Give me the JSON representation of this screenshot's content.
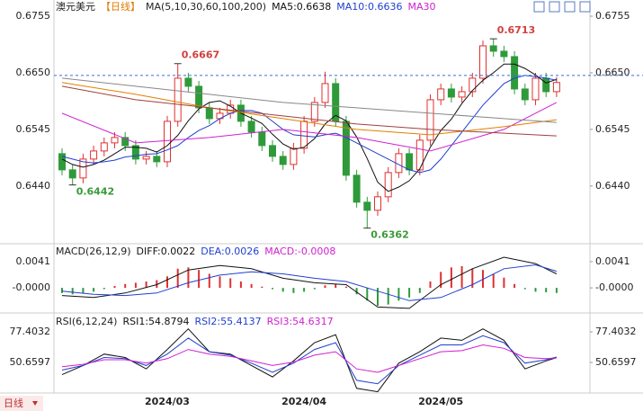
{
  "chart_data": [
    {
      "type": "candlestick",
      "header": [
        {
          "text": "澳元美元",
          "color": "#222"
        },
        {
          "text": "【日线】",
          "color": "#e07b00"
        },
        {
          "text": "MA(5,10,30,60,100,200)",
          "color": "#222"
        }
      ],
      "categories": [
        null,
        null,
        null,
        null,
        null,
        null,
        null,
        null,
        null,
        null,
        "2024/03",
        null,
        null,
        null,
        null,
        null,
        null,
        null,
        null,
        null,
        null,
        null,
        null,
        "2024/04",
        null,
        null,
        null,
        null,
        null,
        null,
        null,
        null,
        null,
        null,
        null,
        null,
        "2024/05",
        null,
        null,
        null,
        null,
        null,
        null,
        null,
        null,
        null,
        null,
        null
      ],
      "open": [
        0.65,
        0.647,
        0.6455,
        0.649,
        0.6505,
        0.652,
        0.653,
        0.6515,
        0.649,
        0.6495,
        0.6485,
        0.656,
        0.664,
        0.6625,
        0.6585,
        0.6565,
        0.6575,
        0.659,
        0.656,
        0.654,
        0.6515,
        0.6495,
        0.648,
        0.651,
        0.656,
        0.6595,
        0.663,
        0.656,
        0.646,
        0.641,
        0.6395,
        0.642,
        0.6465,
        0.65,
        0.647,
        0.6525,
        0.66,
        0.662,
        0.6605,
        0.6615,
        0.664,
        0.67,
        0.669,
        0.668,
        0.662,
        0.66,
        0.664,
        0.6615
      ],
      "high": [
        0.651,
        0.648,
        0.65,
        0.6515,
        0.653,
        0.654,
        0.654,
        0.6525,
        0.6505,
        0.6505,
        0.657,
        0.6667,
        0.665,
        0.6635,
        0.6595,
        0.6585,
        0.66,
        0.66,
        0.657,
        0.655,
        0.6525,
        0.6505,
        0.652,
        0.657,
        0.6605,
        0.6652,
        0.664,
        0.657,
        0.647,
        0.642,
        0.643,
        0.6475,
        0.651,
        0.651,
        0.6535,
        0.661,
        0.663,
        0.663,
        0.6625,
        0.665,
        0.671,
        0.6713,
        0.67,
        0.669,
        0.663,
        0.665,
        0.665,
        0.6642
      ],
      "low": [
        0.646,
        0.6442,
        0.6445,
        0.648,
        0.6495,
        0.651,
        0.6505,
        0.648,
        0.648,
        0.6475,
        0.6475,
        0.655,
        0.6615,
        0.6575,
        0.6555,
        0.6555,
        0.6565,
        0.655,
        0.653,
        0.6505,
        0.6485,
        0.647,
        0.647,
        0.65,
        0.655,
        0.6585,
        0.655,
        0.645,
        0.64,
        0.6362,
        0.6385,
        0.641,
        0.6455,
        0.646,
        0.646,
        0.6515,
        0.659,
        0.6595,
        0.6595,
        0.6605,
        0.663,
        0.668,
        0.667,
        0.661,
        0.659,
        0.659,
        0.6605,
        0.6605
      ],
      "close": [
        0.647,
        0.6455,
        0.649,
        0.6505,
        0.652,
        0.653,
        0.6515,
        0.649,
        0.6495,
        0.6485,
        0.656,
        0.664,
        0.6625,
        0.6585,
        0.6565,
        0.6575,
        0.659,
        0.656,
        0.654,
        0.6515,
        0.6495,
        0.648,
        0.651,
        0.656,
        0.6595,
        0.663,
        0.656,
        0.646,
        0.641,
        0.6395,
        0.642,
        0.6465,
        0.65,
        0.647,
        0.6525,
        0.66,
        0.662,
        0.6605,
        0.6615,
        0.664,
        0.67,
        0.669,
        0.668,
        0.662,
        0.66,
        0.664,
        0.6615,
        0.6632
      ],
      "up_color": "#e03030",
      "down_color": "#2f9a3a",
      "series": [
        {
          "name": "MA5:0.6638",
          "color": "#111111",
          "values": [
            0.649,
            0.648,
            0.6475,
            0.648,
            0.6488,
            0.65,
            0.6512,
            0.6512,
            0.651,
            0.6503,
            0.6515,
            0.6534,
            0.6561,
            0.6583,
            0.6595,
            0.6598,
            0.6588,
            0.6575,
            0.6566,
            0.6556,
            0.6536,
            0.6518,
            0.6508,
            0.6512,
            0.6528,
            0.6555,
            0.6571,
            0.6561,
            0.6531,
            0.6491,
            0.6447,
            0.643,
            0.6438,
            0.645,
            0.6472,
            0.6512,
            0.6543,
            0.6564,
            0.6593,
            0.6617,
            0.6636,
            0.665,
            0.6666,
            0.6666,
            0.6658,
            0.6646,
            0.6631,
            0.6638
          ]
        },
        {
          "name": "MA10:0.6636",
          "color": "#2040d0",
          "values": [
            0.6495,
            0.649,
            0.6485,
            0.6483,
            0.6485,
            0.6488,
            0.6494,
            0.6496,
            0.6499,
            0.65,
            0.6507,
            0.6515,
            0.653,
            0.6543,
            0.6552,
            0.6565,
            0.6575,
            0.658,
            0.658,
            0.6575,
            0.656,
            0.6545,
            0.6535,
            0.6533,
            0.6531,
            0.6535,
            0.6538,
            0.653,
            0.652,
            0.651,
            0.65,
            0.649,
            0.648,
            0.647,
            0.6465,
            0.647,
            0.649,
            0.6515,
            0.654,
            0.6565,
            0.659,
            0.661,
            0.663,
            0.664,
            0.6645,
            0.6643,
            0.664,
            0.6636
          ]
        },
        {
          "name": "MA30",
          "color": "#d020d0",
          "x": [
            0,
            7,
            14,
            21,
            28,
            35,
            42,
            47
          ],
          "values": [
            0.6575,
            0.652,
            0.653,
            0.6545,
            0.653,
            0.6505,
            0.6545,
            0.6595
          ]
        },
        {
          "color": "#e08000",
          "x": [
            0,
            7,
            14,
            21,
            28,
            35,
            42,
            47
          ],
          "values": [
            0.6632,
            0.661,
            0.6585,
            0.6565,
            0.6545,
            0.6535,
            0.655,
            0.6563
          ]
        },
        {
          "color": "#888888",
          "x": [
            0,
            7,
            14,
            21,
            28,
            35,
            42,
            47
          ],
          "values": [
            0.664,
            0.6625,
            0.661,
            0.6595,
            0.6585,
            0.6575,
            0.6565,
            0.6558
          ]
        },
        {
          "color": "#a04040",
          "x": [
            0,
            7,
            14,
            21,
            28,
            35,
            42,
            47
          ],
          "values": [
            0.6625,
            0.66,
            0.6585,
            0.657,
            0.6555,
            0.6545,
            0.6538,
            0.6533
          ]
        }
      ],
      "annotations": [
        {
          "x": 11,
          "value": 0.6667,
          "color": "#d04040"
        },
        {
          "x": 41,
          "value": 0.6713,
          "color": "#d04040"
        },
        {
          "x": 1,
          "value": 0.6442,
          "color": "#3a9a3a"
        },
        {
          "x": 29,
          "value": 0.6362,
          "color": "#3a9a3a"
        }
      ],
      "price_line": 0.6645,
      "ylim": [
        0.6338,
        0.6785
      ],
      "yticks": [
        0.6755,
        {
          "value": 0.665,
          "label": "0.6650"
        },
        0.6545,
        {
          "value": 0.644,
          "label": "0.6440"
        }
      ],
      "period_tab": "日线"
    },
    {
      "type": "macd",
      "header": [
        {
          "text": "MACD(26,12,9)",
          "color": "#222"
        },
        {
          "text": "DIFF:0.0022",
          "color": "#111"
        },
        {
          "text": "DEA:0.0026",
          "color": "#2040d0"
        },
        {
          "text": "MACD:-0.0008",
          "color": "#d020d0"
        }
      ],
      "values": [
        -0.0008,
        -0.001,
        -0.0009,
        -0.0006,
        -0.0002,
        0.0003,
        0.0006,
        0.0008,
        0.001,
        0.0012,
        0.0018,
        0.003,
        0.0032,
        0.0028,
        0.0022,
        0.0018,
        0.0015,
        0.001,
        0.0006,
        0.0002,
        -0.0002,
        -0.0006,
        -0.0008,
        -0.0006,
        -0.0002,
        0.0004,
        0.0006,
        0.0002,
        -0.001,
        -0.002,
        -0.0028,
        -0.0026,
        -0.002,
        -0.0015,
        -0.0008,
        0.001,
        0.0025,
        0.0032,
        0.0034,
        0.003,
        0.0028,
        0.0022,
        0.0016,
        0.0006,
        -0.0002,
        -0.0006,
        -0.0007,
        -0.0008
      ],
      "up_color": "#e03030",
      "down_color": "#2f9a3a",
      "series": [
        {
          "color": "#111111",
          "x": [
            0,
            3,
            6,
            9,
            12,
            15,
            18,
            21,
            24,
            27,
            30,
            33,
            36,
            39,
            42,
            45,
            47
          ],
          "values": [
            -0.0012,
            -0.0015,
            -0.0008,
            0.0005,
            0.0028,
            0.0035,
            0.003,
            0.0015,
            0.0008,
            0.0005,
            -0.003,
            -0.0032,
            0.0005,
            0.003,
            0.0048,
            0.0038,
            0.0022
          ]
        },
        {
          "color": "#2040d0",
          "x": [
            0,
            3,
            6,
            9,
            12,
            15,
            18,
            21,
            24,
            27,
            30,
            33,
            36,
            39,
            42,
            45,
            47
          ],
          "values": [
            -0.0005,
            -0.001,
            -0.0012,
            -0.0008,
            0.0008,
            0.002,
            0.0025,
            0.0022,
            0.0015,
            0.001,
            -0.0005,
            -0.002,
            -0.0015,
            0.0005,
            0.003,
            0.0036,
            0.0026
          ]
        }
      ],
      "ylim": [
        -0.0035,
        0.0062
      ],
      "yticks": [
        0.0041,
        {
          "value": 0,
          "label": "-0.0000"
        }
      ]
    },
    {
      "type": "line",
      "header": [
        {
          "text": "RSI(6,12,24)",
          "color": "#222"
        },
        {
          "text": "RSI1:54.8794",
          "color": "#111"
        },
        {
          "text": "RSI2:55.4137",
          "color": "#2040d0"
        },
        {
          "text": "RSI3:54.6317",
          "color": "#d020d0"
        }
      ],
      "series": [
        {
          "color": "#111111",
          "x": [
            0,
            2,
            4,
            6,
            8,
            10,
            12,
            14,
            16,
            18,
            20,
            22,
            24,
            26,
            28,
            30,
            32,
            34,
            36,
            38,
            40,
            42,
            44,
            46,
            47
          ],
          "values": [
            40,
            48,
            58,
            55,
            45,
            62,
            80,
            60,
            58,
            48,
            38,
            52,
            68,
            75,
            28,
            25,
            50,
            60,
            72,
            70,
            80,
            70,
            45,
            52,
            54.9
          ]
        },
        {
          "color": "#2040d0",
          "x": [
            0,
            2,
            4,
            6,
            8,
            10,
            12,
            14,
            16,
            18,
            20,
            22,
            24,
            26,
            28,
            30,
            32,
            34,
            36,
            38,
            40,
            42,
            44,
            46,
            47
          ],
          "values": [
            44,
            48,
            55,
            54,
            48,
            58,
            72,
            60,
            57,
            50,
            42,
            50,
            62,
            68,
            35,
            32,
            48,
            57,
            66,
            66,
            74,
            68,
            50,
            53,
            55.4
          ]
        },
        {
          "color": "#d020d0",
          "x": [
            0,
            2,
            4,
            6,
            8,
            10,
            12,
            14,
            16,
            18,
            20,
            22,
            24,
            26,
            28,
            30,
            32,
            34,
            36,
            38,
            40,
            42,
            44,
            46,
            47
          ],
          "values": [
            47,
            49,
            53,
            53,
            50,
            54,
            62,
            58,
            56,
            52,
            48,
            51,
            57,
            60,
            45,
            42,
            48,
            54,
            60,
            61,
            66,
            63,
            55,
            54,
            54.6
          ]
        }
      ],
      "ylim": [
        13.7,
        90.77
      ],
      "yticks": [
        77.4032,
        50.6597
      ]
    }
  ]
}
